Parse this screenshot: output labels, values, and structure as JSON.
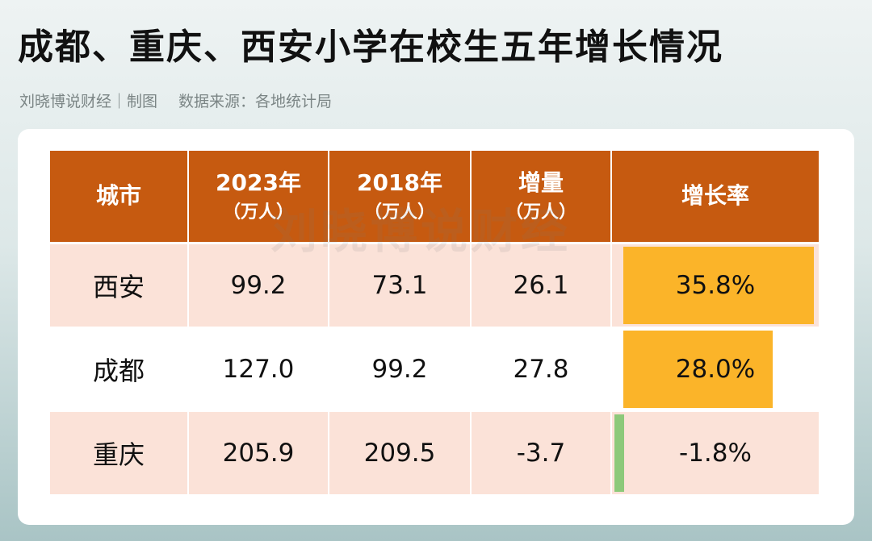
{
  "title": "成都、重庆、西安小学在校生五年增长情况",
  "subtitle": {
    "author": "刘晓博说财经｜制图",
    "source": "数据来源：各地统计局"
  },
  "watermark": "刘晓博说财经",
  "colors": {
    "header_bg": "#c65a10",
    "row_shade": "#fbe2d8",
    "positive_bar": "#fbb429",
    "negative_bar": "#8cc97a"
  },
  "table": {
    "headers": [
      {
        "main": "城市",
        "unit": ""
      },
      {
        "main": "2023年",
        "unit": "（万人）"
      },
      {
        "main": "2018年",
        "unit": "（万人）"
      },
      {
        "main": "增量",
        "unit": "（万人）"
      },
      {
        "main": "增长率",
        "unit": ""
      }
    ],
    "rows": [
      {
        "city": "西安",
        "y2023": "99.2",
        "y2018": "73.1",
        "increase": "26.1",
        "rate": "35.8%"
      },
      {
        "city": "成都",
        "y2023": "127.0",
        "y2018": "99.2",
        "increase": "27.8",
        "rate": "28.0%"
      },
      {
        "city": "重庆",
        "y2023": "205.9",
        "y2018": "209.5",
        "increase": "-3.7",
        "rate": "-1.8%"
      }
    ]
  },
  "chart_data": {
    "type": "table",
    "title": "成都、重庆、西安小学在校生五年增长情况",
    "columns": [
      "城市",
      "2023年（万人）",
      "2018年（万人）",
      "增量（万人）",
      "增长率"
    ],
    "categories": [
      "西安",
      "成都",
      "重庆"
    ],
    "series": [
      {
        "name": "2023年",
        "values": [
          99.2,
          127.0,
          205.9
        ]
      },
      {
        "name": "2018年",
        "values": [
          73.1,
          99.2,
          209.5
        ]
      },
      {
        "name": "增量",
        "values": [
          26.1,
          27.8,
          -3.7
        ]
      },
      {
        "name": "增长率",
        "values": [
          35.8,
          28.0,
          -1.8
        ]
      }
    ]
  }
}
